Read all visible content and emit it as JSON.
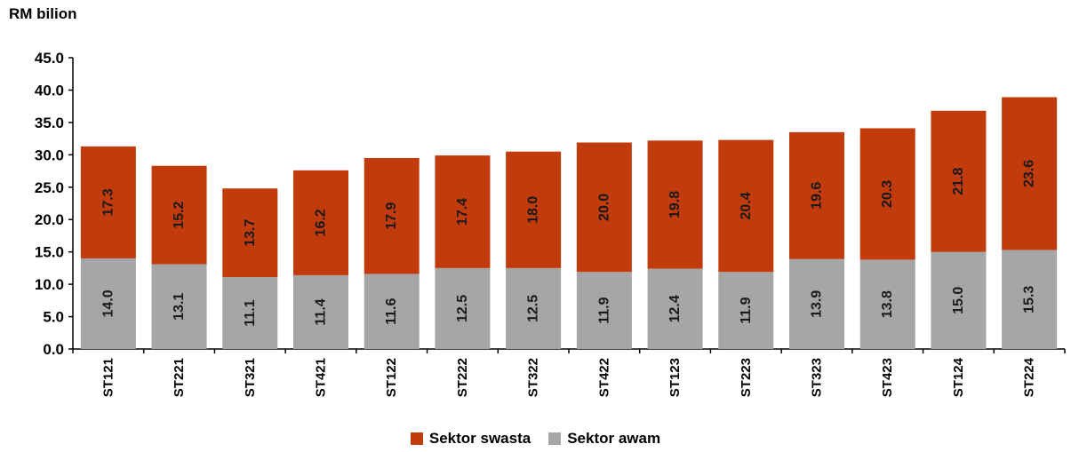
{
  "chart_data": {
    "type": "bar",
    "stacked": true,
    "ylabel": "RM bilion",
    "ylim": [
      0,
      45
    ],
    "yticks": [
      "0.0",
      "5.0",
      "10.0",
      "15.0",
      "20.0",
      "25.0",
      "30.0",
      "35.0",
      "40.0",
      "45.0"
    ],
    "categories": [
      "ST121",
      "ST221",
      "ST321",
      "ST421",
      "ST122",
      "ST222",
      "ST322",
      "ST422",
      "ST123",
      "ST223",
      "ST323",
      "ST423",
      "ST124",
      "ST224"
    ],
    "series": [
      {
        "name": "Sektor awam",
        "color": "#a6a6a6",
        "values": [
          14.0,
          13.1,
          11.1,
          11.4,
          11.6,
          12.5,
          12.5,
          11.9,
          12.4,
          11.9,
          13.9,
          13.8,
          15.0,
          15.3
        ],
        "labels": [
          "14.0",
          "13.1",
          "11.1",
          "11.4",
          "11.6",
          "12.5",
          "12.5",
          "11.9",
          "12.4",
          "11.9",
          "13.9",
          "13.8",
          "15.0",
          "15.3"
        ]
      },
      {
        "name": "Sektor swasta",
        "color": "#c23b0c",
        "values": [
          17.3,
          15.2,
          13.7,
          16.2,
          17.9,
          17.4,
          18.0,
          20.0,
          19.8,
          20.4,
          19.6,
          20.3,
          21.8,
          23.6
        ],
        "labels": [
          "17.3",
          "15.2",
          "13.7",
          "16.2",
          "17.9",
          "17.4",
          "18.0",
          "20.0",
          "19.8",
          "20.4",
          "19.6",
          "20.3",
          "21.8",
          "23.6"
        ]
      }
    ],
    "legend": [
      {
        "name": "Sektor swasta",
        "color": "#c23b0c"
      },
      {
        "name": "Sektor awam",
        "color": "#a6a6a6"
      }
    ],
    "legend_position": "bottom",
    "grid": false
  }
}
